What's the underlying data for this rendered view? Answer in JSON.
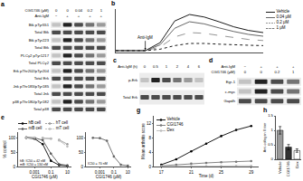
{
  "chart_data": [
    {
      "title": "b",
      "type": "line",
      "x": [
        0,
        30,
        60,
        90,
        120,
        150,
        180,
        210,
        240,
        270,
        300
      ],
      "xlim": [
        0,
        300
      ],
      "ylim": [
        -0.05,
        1.15
      ],
      "tick_labels": false,
      "legend": "right",
      "annotations": [
        {
          "text": "Anti-IgM",
          "x": 60,
          "y": 0.02
        }
      ],
      "series": [
        {
          "name": "Vehicle",
          "color": "#000000",
          "line_style": "solid",
          "values": [
            0,
            0,
            0,
            0.22,
            0.82,
            1.0,
            0.93,
            0.8,
            0.66,
            0.56,
            0.5
          ]
        },
        {
          "name": "0.04 μM",
          "color": "#555555",
          "line_style": "solid",
          "values": [
            0,
            0,
            0,
            0.16,
            0.62,
            0.8,
            0.74,
            0.63,
            0.53,
            0.45,
            0.4
          ]
        },
        {
          "name": "0.2 μM",
          "color": "#888888",
          "line_style": "dash",
          "values": [
            0,
            0,
            0,
            0.1,
            0.38,
            0.5,
            0.48,
            0.42,
            0.36,
            0.31,
            0.28
          ]
        },
        {
          "name": "1 μM",
          "color": "#000000",
          "line_style": "dot",
          "values": [
            0,
            0,
            0,
            0.04,
            0.14,
            0.2,
            0.2,
            0.18,
            0.16,
            0.15,
            0.14
          ]
        }
      ]
    },
    {
      "title": "e",
      "type": "line",
      "log": "x",
      "x": [
        0.0001,
        0.001,
        0.01,
        0.1,
        1,
        10
      ],
      "xlim": [
        1e-05,
        30
      ],
      "xticks": [
        0.001,
        0.1,
        10
      ],
      "ylim": [
        0,
        120
      ],
      "yticks": [
        0,
        50,
        100
      ],
      "xlabel": "CGI1746 (μM)",
      "ylabel": "% control",
      "legend": "top",
      "marker": "circle",
      "annotations": [
        {
          "text": "hB: IC50 = 42 nM",
          "x": 1e-05,
          "y": 18
        },
        {
          "text": "mB: IC50 = 134 nM",
          "x": 1e-05,
          "y": 6
        }
      ],
      "series": [
        {
          "name": "hB cell",
          "color": "#000000",
          "line_style": "solid",
          "values": [
            100,
            97,
            78,
            20,
            5,
            3
          ]
        },
        {
          "name": "hT cell",
          "color": "#999999",
          "line_style": "dash",
          "values": [
            101,
            100,
            99,
            97,
            93,
            78
          ]
        },
        {
          "name": "mB cell",
          "color": "#555555",
          "line_style": "solid",
          "values": [
            102,
            100,
            92,
            45,
            8,
            4
          ]
        },
        {
          "name": "mT cell",
          "color": "#bbbbbb",
          "line_style": "dash",
          "values": [
            100,
            101,
            100,
            98,
            91,
            70
          ]
        }
      ]
    },
    {
      "type": "line",
      "log": "x",
      "x": [
        0.0001,
        0.001,
        0.01,
        0.1,
        1,
        10
      ],
      "xlim": [
        1e-05,
        30
      ],
      "xticks": [
        0.001,
        0.1,
        10
      ],
      "ylim": [
        0,
        120
      ],
      "yticks": [
        0,
        50,
        100
      ],
      "xlabel": "CGI1746 (μM)",
      "marker": "circle",
      "annotations": [
        {
          "text": "IC50 = 70 nM",
          "x": 1e-05,
          "y": 8
        }
      ],
      "series": [
        {
          "color": "#666666",
          "line_style": "solid",
          "values": [
            100,
            99,
            90,
            35,
            6,
            3
          ]
        }
      ]
    },
    {
      "title": "g",
      "type": "line",
      "x": [
        17,
        19,
        21,
        23,
        25,
        27,
        29
      ],
      "xlim": [
        16,
        30
      ],
      "xticks": [
        17,
        21,
        25,
        29
      ],
      "ylim": [
        0,
        14
      ],
      "yticks": [
        0,
        4,
        8,
        12
      ],
      "xlabel": "Time (d)",
      "ylabel": "Mean arthritis score",
      "legend": "top left",
      "marker": "circle",
      "series": [
        {
          "name": "Vehicle",
          "color": "#000000",
          "line_style": "solid",
          "values": [
            0.5,
            2,
            4.2,
            6.3,
            8.4,
            10.1,
            11.2
          ]
        },
        {
          "name": "CGI1746",
          "color": "#777777",
          "line_style": "solid",
          "values": [
            0.2,
            0.5,
            0.8,
            1.0,
            1.2,
            1.3,
            1.5
          ]
        },
        {
          "name": "Dex",
          "color": "#bbbbbb",
          "line_style": "solid",
          "values": [
            0,
            0,
            0.1,
            0.1,
            0.1,
            0.2,
            0.2
          ]
        }
      ]
    },
    {
      "title": "h",
      "type": "bar",
      "categories": [
        "Vehicle",
        "CGI1746",
        "Dex"
      ],
      "values": [
        1.0,
        0.42,
        0.3
      ],
      "errors": [
        0.13,
        0.09,
        0.06
      ],
      "colors": [
        "#9a9a9a",
        "#333333",
        "#ffffff"
      ],
      "ylim": [
        0,
        1.5
      ],
      "yticks": [
        0,
        0.5,
        1,
        1.5
      ],
      "ylabel": "Anti-collagen II titer"
    }
  ],
  "blots": [
    {
      "title": "a",
      "header_rows": [
        {
          "label": "CGI1746 (μM)",
          "lanes": [
            "0",
            "0",
            "0.04",
            "0.2",
            "1"
          ]
        },
        {
          "label": "Anti-IgM",
          "lanes": [
            "−",
            "+",
            "+",
            "+",
            "+"
          ]
        }
      ],
      "rows": [
        "Btk pTyr551",
        "Total Btk",
        "Btk pTyr223",
        "Total Btk",
        "PLCγ2 pTyr1217",
        "Total PLCγ2",
        "Erk pThr202/pTyr204",
        "Total Erk",
        "Jnk pThr183/pTyr185",
        "Total Jnk",
        "p38 pThr180/pTyr182",
        "Total p38"
      ]
    },
    {
      "title": "c",
      "header_rows": [
        {
          "label": "Anti-IgM (h)",
          "lanes": [
            "0",
            "0.5",
            "1",
            "2",
            "4",
            "6"
          ]
        }
      ],
      "rows": [
        "p-Erk",
        "Total Erk"
      ]
    },
    {
      "title": "d",
      "header_rows": [
        {
          "label": "Anti-IgM",
          "lanes": [
            "−",
            "+",
            "+",
            "+"
          ]
        },
        {
          "label": "CGI1746 (μM)",
          "lanes": [
            "0",
            "0",
            "0.2",
            "1"
          ]
        }
      ],
      "rows": [
        "Egr-1",
        "c-myc",
        "Gapdh"
      ]
    }
  ]
}
